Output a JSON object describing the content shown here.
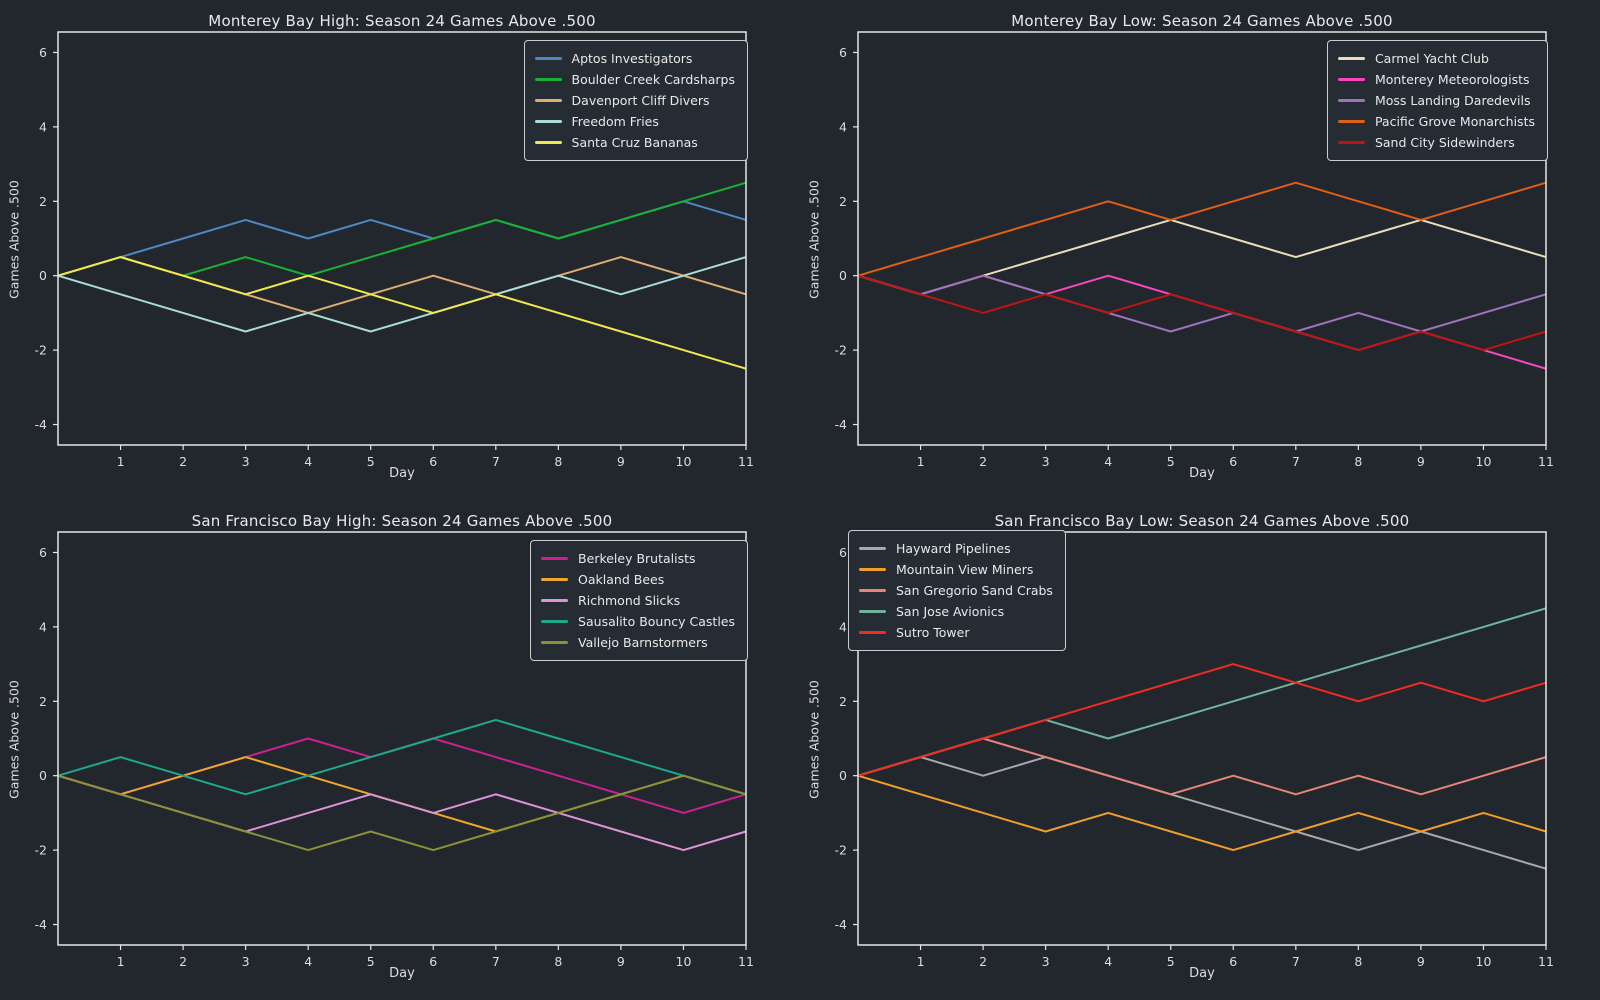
{
  "figure": {
    "background": "#22272e",
    "spine_color": "#e6e6e6",
    "tick_color": "#e6e6e6",
    "tick_label_color": "#dcdcdc",
    "title_color": "#e8e8e8",
    "legend_background": "#262c34",
    "legend_border": "#c9cdd1",
    "x_ticks": [
      1,
      2,
      3,
      4,
      5,
      6,
      7,
      8,
      9,
      10,
      11
    ],
    "y_ticks": [
      -4,
      -2,
      0,
      2,
      4,
      6
    ]
  },
  "chart_data": [
    {
      "type": "line",
      "title": "Monterey Bay High: Season 24 Games Above .500",
      "xlabel": "Day",
      "ylabel": "Games Above .500",
      "xlim": [
        0,
        11
      ],
      "ylim": [
        -4.55,
        6.55
      ],
      "grid": false,
      "legend_position": "top-right",
      "x": [
        0,
        1,
        2,
        3,
        4,
        5,
        6,
        7,
        8,
        9,
        10,
        11
      ],
      "series": [
        {
          "name": "Aptos Investigators",
          "color": "#4e87c3",
          "values": [
            0,
            0.5,
            1.0,
            1.5,
            1.0,
            1.5,
            1.0,
            1.5,
            1.0,
            1.5,
            2.0,
            1.5
          ]
        },
        {
          "name": "Boulder Creek Cardsharps",
          "color": "#17b335",
          "values": [
            0,
            0.5,
            0.0,
            0.5,
            0.0,
            0.5,
            1.0,
            1.5,
            1.0,
            1.5,
            2.0,
            2.5
          ]
        },
        {
          "name": "Davenport Cliff Divers",
          "color": "#dcae72",
          "values": [
            0,
            0.5,
            0.0,
            -0.5,
            -1.0,
            -0.5,
            0.0,
            -0.5,
            0.0,
            0.5,
            0.0,
            -0.5
          ]
        },
        {
          "name": "Freedom Fries",
          "color": "#aadcd8",
          "values": [
            0,
            -0.5,
            -1.0,
            -1.5,
            -1.0,
            -1.5,
            -1.0,
            -0.5,
            0.0,
            -0.5,
            0.0,
            0.5
          ]
        },
        {
          "name": "Santa Cruz Bananas",
          "color": "#f1e94b",
          "values": [
            0,
            0.5,
            0.0,
            -0.5,
            0.0,
            -0.5,
            -1.0,
            -0.5,
            -1.0,
            -1.5,
            -2.0,
            -2.5
          ]
        }
      ]
    },
    {
      "type": "line",
      "title": "Monterey Bay Low: Season 24 Games Above .500",
      "xlabel": "Day",
      "ylabel": "Games Above .500",
      "xlim": [
        0,
        11
      ],
      "ylim": [
        -4.55,
        6.55
      ],
      "grid": false,
      "legend_position": "top-right",
      "x": [
        0,
        1,
        2,
        3,
        4,
        5,
        6,
        7,
        8,
        9,
        10,
        11
      ],
      "series": [
        {
          "name": "Carmel Yacht Club",
          "color": "#ecdcbc",
          "values": [
            0,
            -0.5,
            0.0,
            0.5,
            1.0,
            1.5,
            1.0,
            0.5,
            1.0,
            1.5,
            1.0,
            0.5
          ]
        },
        {
          "name": "Monterey Meteorologists",
          "color": "#f747bf",
          "values": [
            0,
            -0.5,
            0.0,
            -0.5,
            0.0,
            -0.5,
            -1.0,
            -1.5,
            -2.0,
            -1.5,
            -2.0,
            -2.5
          ]
        },
        {
          "name": "Moss Landing Daredevils",
          "color": "#9e74ba",
          "values": [
            0,
            -0.5,
            0.0,
            -0.5,
            -1.0,
            -1.5,
            -1.0,
            -1.5,
            -1.0,
            -1.5,
            -1.0,
            -0.5
          ]
        },
        {
          "name": "Pacific Grove Monarchists",
          "color": "#e05f12",
          "values": [
            0,
            0.5,
            1.0,
            1.5,
            2.0,
            1.5,
            2.0,
            2.5,
            2.0,
            1.5,
            2.0,
            2.5
          ]
        },
        {
          "name": "Sand City Sidewinders",
          "color": "#bf1510",
          "values": [
            0,
            -0.5,
            -1.0,
            -0.5,
            -1.0,
            -0.5,
            -1.0,
            -1.5,
            -2.0,
            -1.5,
            -2.0,
            -1.5
          ]
        }
      ]
    },
    {
      "type": "line",
      "title": "San Francisco Bay High: Season 24 Games Above .500",
      "xlabel": "Day",
      "ylabel": "Games Above .500",
      "xlim": [
        0,
        11
      ],
      "ylim": [
        -4.55,
        6.55
      ],
      "grid": false,
      "legend_position": "top-right",
      "x": [
        0,
        1,
        2,
        3,
        4,
        5,
        6,
        7,
        8,
        9,
        10,
        11
      ],
      "series": [
        {
          "name": "Berkeley Brutalists",
          "color": "#cc2090",
          "values": [
            0,
            -0.5,
            0.0,
            0.5,
            1.0,
            0.5,
            1.0,
            0.5,
            0.0,
            -0.5,
            -1.0,
            -0.5
          ]
        },
        {
          "name": "Oakland Bees",
          "color": "#f0a82c",
          "values": [
            0,
            -0.5,
            0.0,
            0.5,
            0.0,
            -0.5,
            -1.0,
            -1.5,
            -1.0,
            -0.5,
            0.0,
            -0.5
          ]
        },
        {
          "name": "Richmond Slicks",
          "color": "#dd93d8",
          "values": [
            0,
            -0.5,
            -1.0,
            -1.5,
            -1.0,
            -0.5,
            -1.0,
            -0.5,
            -1.0,
            -1.5,
            -2.0,
            -1.5
          ]
        },
        {
          "name": "Sausalito Bouncy Castles",
          "color": "#1da98b",
          "values": [
            0,
            0.5,
            0.0,
            -0.5,
            0.0,
            0.5,
            1.0,
            1.5,
            1.0,
            0.5,
            0.0,
            -0.5
          ]
        },
        {
          "name": "Vallejo Barnstormers",
          "color": "#8b9138",
          "values": [
            0,
            -0.5,
            -1.0,
            -1.5,
            -2.0,
            -1.5,
            -2.0,
            -1.5,
            -1.0,
            -0.5,
            0.0,
            -0.5
          ]
        }
      ]
    },
    {
      "type": "line",
      "title": "San Francisco Bay Low: Season 24 Games Above .500",
      "xlabel": "Day",
      "ylabel": "Games Above .500",
      "xlim": [
        0,
        11
      ],
      "ylim": [
        -4.55,
        6.55
      ],
      "grid": false,
      "legend_position": "top-left",
      "x": [
        0,
        1,
        2,
        3,
        4,
        5,
        6,
        7,
        8,
        9,
        10,
        11
      ],
      "series": [
        {
          "name": "Hayward Pipelines",
          "color": "#a8a8a8",
          "values": [
            0,
            0.5,
            0.0,
            0.5,
            0.0,
            -0.5,
            -1.0,
            -1.5,
            -2.0,
            -1.5,
            -2.0,
            -2.5
          ]
        },
        {
          "name": "Mountain View Miners",
          "color": "#f09e29",
          "values": [
            0,
            -0.5,
            -1.0,
            -1.5,
            -1.0,
            -1.5,
            -2.0,
            -1.5,
            -1.0,
            -1.5,
            -1.0,
            -1.5
          ]
        },
        {
          "name": "San Gregorio Sand Crabs",
          "color": "#e8837b",
          "values": [
            0,
            0.5,
            1.0,
            0.5,
            0.0,
            -0.5,
            0.0,
            -0.5,
            0.0,
            -0.5,
            0.0,
            0.5
          ]
        },
        {
          "name": "San Jose Avionics",
          "color": "#72b49b",
          "values": [
            0,
            0.5,
            1.0,
            1.5,
            1.0,
            1.5,
            2.0,
            2.5,
            3.0,
            3.5,
            4.0,
            4.5
          ]
        },
        {
          "name": "Sutro Tower",
          "color": "#f22b20",
          "values": [
            0,
            0.5,
            1.0,
            1.5,
            2.0,
            2.5,
            3.0,
            2.5,
            2.0,
            2.5,
            2.0,
            2.5
          ]
        }
      ]
    }
  ]
}
